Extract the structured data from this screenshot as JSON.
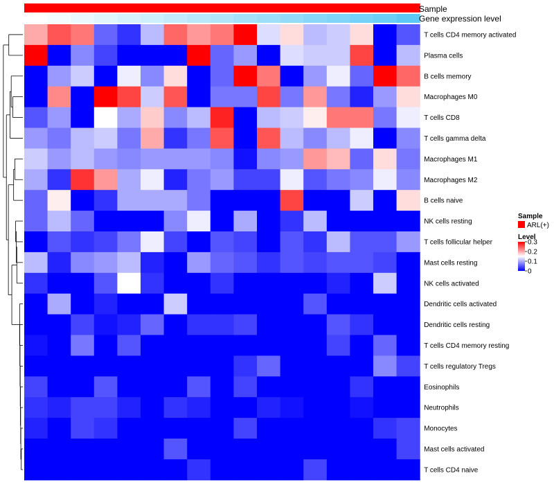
{
  "chart_data": {
    "type": "heatmap",
    "annotations": [
      {
        "name": "Sample",
        "color": "#ff0000"
      },
      {
        "name": "Gene expression level",
        "gradient_low": "#ffffff",
        "gradient_high": "#5bc8f5"
      }
    ],
    "rows": [
      "T cells CD4 memory activated",
      "Plasma cells",
      "B cells memory",
      "Macrophages M0",
      "T cells CD8",
      "T cells gamma delta",
      "Macrophages M1",
      "Macrophages M2",
      "B cells naive",
      "NK cells resting",
      "T cells follicular helper",
      "Mast cells resting",
      "NK cells activated",
      "Dendritic cells activated",
      "Dendritic cells resting",
      "T cells CD4 memory resting",
      "T cells regulatory  Tregs",
      "Eosinophils",
      "Neutrophils",
      "Monocytes",
      "Mast cells activated",
      "T cells CD4 naive"
    ],
    "values": [
      [
        0.2,
        0.25,
        0.23,
        0.06,
        0.03,
        0.11,
        0.24,
        0.21,
        0.23,
        0.3,
        0.13,
        0.17,
        0.11,
        0.12,
        0.17,
        0.0,
        0.05
      ],
      [
        0.3,
        0.0,
        0.08,
        0.04,
        0.0,
        0.0,
        0.0,
        0.3,
        0.06,
        0.09,
        0.0,
        0.13,
        0.12,
        0.12,
        0.26,
        0.0,
        0.11
      ],
      [
        0.0,
        0.09,
        0.12,
        0.0,
        0.14,
        0.08,
        0.17,
        0.0,
        0.06,
        0.3,
        0.23,
        0.0,
        0.09,
        0.14,
        0.06,
        0.3,
        0.24
      ],
      [
        0.0,
        0.22,
        0.0,
        0.3,
        0.26,
        0.12,
        0.25,
        0.0,
        0.07,
        0.07,
        0.26,
        0.07,
        0.21,
        0.07,
        0.02,
        0.09,
        0.17
      ],
      [
        0.05,
        0.09,
        0.0,
        0.15,
        0.1,
        0.18,
        0.08,
        0.11,
        0.28,
        0.0,
        0.11,
        0.12,
        0.16,
        0.23,
        0.23,
        0.07,
        0.14
      ],
      [
        0.09,
        0.07,
        0.11,
        0.12,
        0.07,
        0.2,
        0.03,
        0.07,
        0.25,
        0.0,
        0.25,
        0.11,
        0.08,
        0.11,
        0.14,
        0.0,
        0.08
      ],
      [
        0.12,
        0.09,
        0.11,
        0.09,
        0.08,
        0.09,
        0.09,
        0.09,
        0.08,
        0.01,
        0.08,
        0.09,
        0.21,
        0.19,
        0.06,
        0.17,
        0.07
      ],
      [
        0.1,
        0.03,
        0.27,
        0.21,
        0.1,
        0.14,
        0.02,
        0.07,
        0.09,
        0.04,
        0.04,
        0.14,
        0.05,
        0.07,
        0.08,
        0.14,
        0.08
      ],
      [
        0.06,
        0.16,
        0.0,
        0.03,
        0.1,
        0.1,
        0.1,
        0.07,
        0.0,
        0.0,
        0.0,
        0.26,
        0.0,
        0.0,
        0.12,
        0.0,
        0.17
      ],
      [
        0.06,
        0.11,
        0.06,
        0.0,
        0.0,
        0.0,
        0.08,
        0.14,
        0.0,
        0.1,
        0.0,
        0.03,
        0.11,
        0.0,
        0.0,
        0.0,
        0.0
      ],
      [
        0.0,
        0.05,
        0.03,
        0.04,
        0.07,
        0.14,
        0.04,
        0.0,
        0.05,
        0.04,
        0.0,
        0.05,
        0.03,
        0.11,
        0.05,
        0.05,
        0.09
      ],
      [
        0.11,
        0.02,
        0.08,
        0.09,
        0.11,
        0.02,
        0.0,
        0.09,
        0.06,
        0.05,
        0.03,
        0.05,
        0.04,
        0.05,
        0.05,
        0.04,
        0.0
      ],
      [
        0.03,
        0.0,
        0.0,
        0.05,
        0.15,
        0.03,
        0.0,
        0.0,
        0.03,
        0.0,
        0.0,
        0.0,
        0.0,
        0.02,
        0.0,
        0.12,
        0.0
      ],
      [
        0.0,
        0.1,
        0.0,
        0.02,
        0.0,
        0.0,
        0.12,
        0.0,
        0.0,
        0.0,
        0.0,
        0.0,
        0.05,
        0.0,
        0.0,
        0.0,
        0.0
      ],
      [
        0.0,
        0.0,
        0.04,
        0.01,
        0.02,
        0.06,
        0.0,
        0.03,
        0.03,
        0.04,
        0.0,
        0.0,
        0.0,
        0.05,
        0.03,
        0.0,
        0.0
      ],
      [
        0.01,
        0.0,
        0.07,
        0.0,
        0.05,
        0.0,
        0.0,
        0.0,
        0.0,
        0.0,
        0.0,
        0.0,
        0.0,
        0.04,
        0.0,
        0.06,
        0.0
      ],
      [
        0.0,
        0.0,
        0.0,
        0.0,
        0.0,
        0.0,
        0.0,
        0.0,
        0.0,
        0.03,
        0.06,
        0.0,
        0.0,
        0.0,
        0.0,
        0.08,
        0.04
      ],
      [
        0.04,
        0.0,
        0.0,
        0.05,
        0.0,
        0.0,
        0.0,
        0.05,
        0.0,
        0.04,
        0.0,
        0.0,
        0.0,
        0.0,
        0.03,
        0.0,
        0.0
      ],
      [
        0.03,
        0.02,
        0.04,
        0.04,
        0.02,
        0.0,
        0.03,
        0.02,
        0.0,
        0.0,
        0.02,
        0.01,
        0.0,
        0.0,
        0.01,
        0.0,
        0.0
      ],
      [
        0.02,
        0.0,
        0.04,
        0.03,
        0.0,
        0.0,
        0.0,
        0.0,
        0.0,
        0.04,
        0.0,
        0.0,
        0.0,
        0.0,
        0.0,
        0.03,
        0.04
      ],
      [
        0.0,
        0.0,
        0.0,
        0.0,
        0.0,
        0.0,
        0.05,
        0.0,
        0.0,
        0.0,
        0.0,
        0.0,
        0.0,
        0.0,
        0.0,
        0.0,
        0.04
      ],
      [
        0.0,
        0.0,
        0.0,
        0.0,
        0.0,
        0.0,
        0.0,
        0.03,
        0.0,
        0.0,
        0.0,
        0.0,
        0.04,
        0.0,
        0.0,
        0.0,
        0.0
      ]
    ],
    "gene_expression_level": [
      0.0,
      0.06,
      0.12,
      0.18,
      0.24,
      0.3,
      0.36,
      0.42,
      0.48,
      0.54,
      0.6,
      0.66,
      0.72,
      0.78,
      0.84,
      0.9,
      1.0
    ],
    "color_scale": {
      "low": "#0000ff",
      "mid": "#ffffff",
      "high": "#ff0000",
      "min": 0,
      "mid_value": 0.15,
      "max": 0.3
    },
    "legend": {
      "sample_title": "Sample",
      "sample_item": "ARL(+)",
      "level_title": "Level",
      "level_ticks": [
        "0.3",
        "0.2",
        "0.1",
        "0"
      ],
      "level_tick_values": [
        0.3,
        0.2,
        0.1,
        0
      ]
    }
  }
}
